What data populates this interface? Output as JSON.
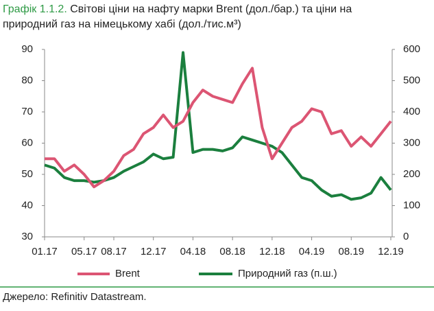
{
  "chart_data": {
    "type": "line",
    "figure_label": "Графік 1.1.2.",
    "title_lines": [
      "Світові ціни на нафту марки Brent (дол./бар.) та ціни на",
      "природний газ на німецькому хабі (дол./тис.м³)"
    ],
    "categories": [
      "01.17",
      null,
      null,
      null,
      "05.17",
      null,
      null,
      "08.17",
      null,
      null,
      null,
      "12.17",
      null,
      null,
      null,
      "04.18",
      null,
      null,
      null,
      "08.18",
      null,
      null,
      null,
      "12.18",
      null,
      null,
      null,
      "04.19",
      null,
      null,
      null,
      "08.19",
      null,
      null,
      null,
      "12.19"
    ],
    "series": [
      {
        "name": "Brent",
        "color": "#dc5573",
        "axis": "y",
        "values": [
          55,
          55,
          51,
          53,
          50,
          46,
          48,
          51,
          56,
          58,
          63,
          65,
          69,
          65,
          67,
          73,
          77,
          75,
          74,
          73,
          79,
          84,
          65,
          55,
          60,
          65,
          67,
          71,
          70,
          63,
          64,
          59,
          62,
          59,
          63,
          67
        ]
      },
      {
        "name": "Природний газ (п.ш.)",
        "color": "#1b7f3e",
        "axis": "y2",
        "values": [
          230,
          220,
          190,
          180,
          180,
          175,
          180,
          190,
          210,
          225,
          240,
          265,
          250,
          255,
          590,
          270,
          280,
          280,
          275,
          285,
          320,
          310,
          300,
          290,
          270,
          230,
          190,
          180,
          150,
          130,
          135,
          120,
          125,
          140,
          190,
          150
        ]
      }
    ],
    "ylim": [
      30,
      90
    ],
    "yticks": [
      30,
      40,
      50,
      60,
      70,
      80,
      90
    ],
    "y2lim": [
      0,
      600
    ],
    "y2ticks": [
      0,
      100,
      200,
      300,
      400,
      500,
      600
    ],
    "source": "Джерело: Refinitiv Datastream."
  }
}
